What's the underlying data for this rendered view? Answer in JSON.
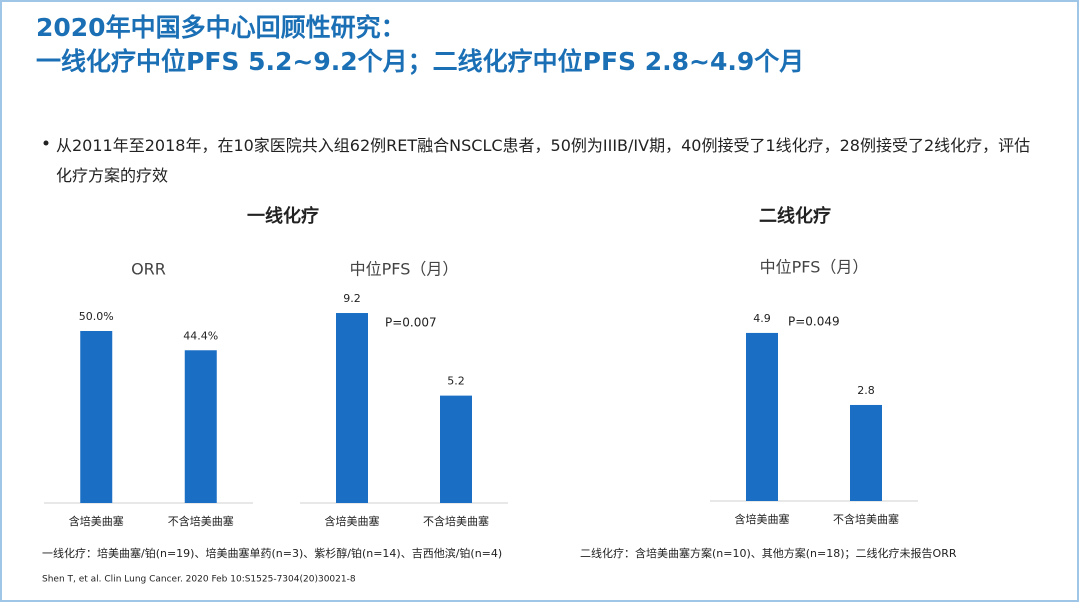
{
  "header": {
    "title_line1": "2020年中国多中心回顾性研究：",
    "title_line2": "一线化疗中位PFS 5.2~9.2个月；二线化疗中位PFS 2.8~4.9个月"
  },
  "bullet": "从2011年至2018年，在10家医院共入组62例RET融合NSCLC患者，50例为IIIB/IV期，40例接受了1线化疗，28例接受了2线化疗，评估化疗方案的疗效",
  "group_titles": [
    "一线化疗",
    "二线化疗"
  ],
  "chart_data": [
    {
      "type": "bar",
      "title": "ORR",
      "categories": [
        "含培美曲塞",
        "不含培美曲塞"
      ],
      "values": [
        50.0,
        44.4
      ],
      "value_labels": [
        "50.0%",
        "44.4%"
      ],
      "color": "#1a6fc4"
    },
    {
      "type": "bar",
      "title": "中位PFS（月）",
      "categories": [
        "含培美曲塞",
        "不含培美曲塞"
      ],
      "values": [
        9.2,
        5.2
      ],
      "annotation": "P=0.007",
      "color": "#1a6fc4"
    },
    {
      "type": "bar",
      "title": "中位PFS（月）",
      "categories": [
        "含培美曲塞",
        "不含培美曲塞"
      ],
      "values": [
        4.9,
        2.8
      ],
      "annotation": "P=0.049",
      "color": "#1a6fc4"
    }
  ],
  "footnotes": [
    "一线化疗：培美曲塞/铂(n=19)、培美曲塞单药(n=3)、紫杉醇/铂(n=14)、吉西他滨/铂(n=4)",
    "二线化疗：含培美曲塞方案(n=10)、其他方案(n=18)；二线化疗未报告ORR"
  ],
  "citation": "Shen T, et al. Clin Lung Cancer. 2020 Feb 10:S1525-7304(20)30021-8"
}
